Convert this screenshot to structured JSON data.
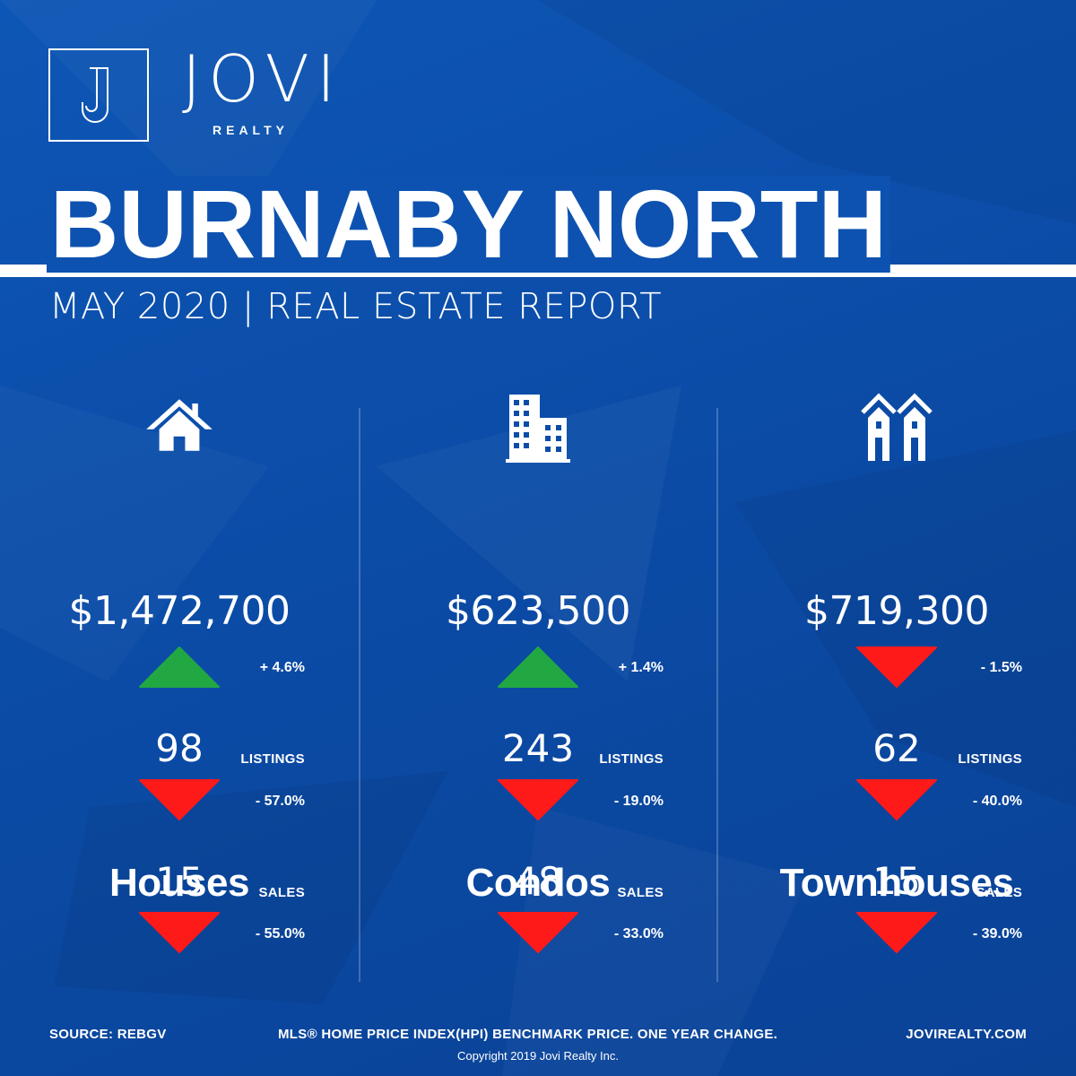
{
  "brand": {
    "name": "JOVI",
    "sub": "REALTY",
    "logo_letter": "J"
  },
  "title": "BURNABY NORTH",
  "subtitle": "MAY 2020 | REAL ESTATE REPORT",
  "colors": {
    "background": "#0b4ca7",
    "up": "#22a843",
    "down": "#ff1a1a",
    "text": "#ffffff"
  },
  "columns": [
    {
      "icon": "house-icon",
      "category": "Houses",
      "price": "$1,472,700",
      "price_change": {
        "direction": "up",
        "value": "+ 4.6%"
      },
      "listings": {
        "count": "98",
        "label": "LISTINGS",
        "direction": "down",
        "change": "- 57.0%"
      },
      "sales": {
        "count": "15",
        "label": "SALES",
        "direction": "down",
        "change": "- 55.0%"
      }
    },
    {
      "icon": "condo-building-icon",
      "category": "Condos",
      "price": "$623,500",
      "price_change": {
        "direction": "up",
        "value": "+ 1.4%"
      },
      "listings": {
        "count": "243",
        "label": "LISTINGS",
        "direction": "down",
        "change": "- 19.0%"
      },
      "sales": {
        "count": "48",
        "label": "SALES",
        "direction": "down",
        "change": "- 33.0%"
      }
    },
    {
      "icon": "townhouse-icon",
      "category": "Townhouses",
      "price": "$719,300",
      "price_change": {
        "direction": "down",
        "value": "- 1.5%"
      },
      "listings": {
        "count": "62",
        "label": "LISTINGS",
        "direction": "down",
        "change": "- 40.0%"
      },
      "sales": {
        "count": "15",
        "label": "SALES",
        "direction": "down",
        "change": "- 39.0%"
      }
    }
  ],
  "footer": {
    "source": "SOURCE:  REBGV",
    "note": "MLS® HOME PRICE INDEX(HPI) BENCHMARK PRICE. ONE YEAR CHANGE.",
    "website": "JOVIREALTY.COM",
    "copyright": "Copyright 2019 Jovi Realty Inc."
  }
}
